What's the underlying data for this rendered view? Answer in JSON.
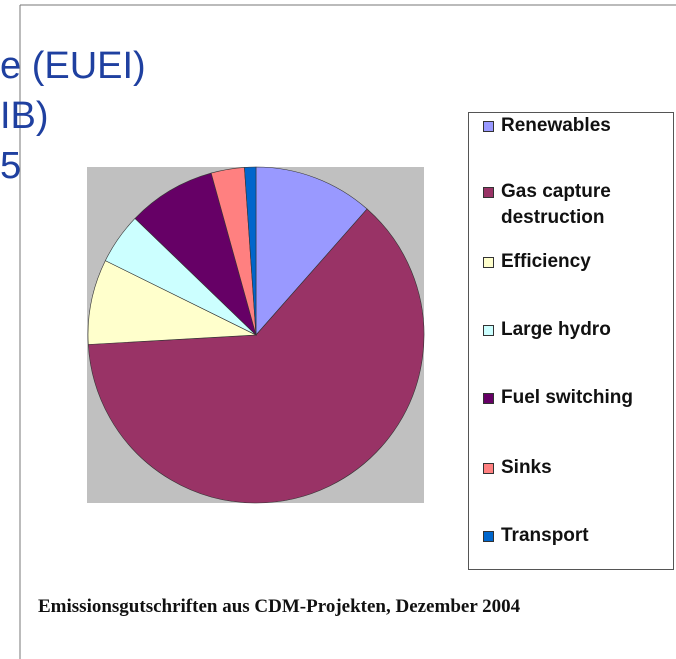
{
  "chart_data": {
    "type": "pie",
    "categories": [
      "Renewables",
      "Gas capture destruction",
      "Efficiency",
      "Large hydro",
      "Fuel switching",
      "Sinks",
      "Transport"
    ],
    "values": [
      11.5,
      62.6,
      8.2,
      4.9,
      8.5,
      3.2,
      1.1
    ],
    "colors": [
      "#9999ff",
      "#993366",
      "#ffffcc",
      "#ccffff",
      "#660066",
      "#ff8080",
      "#0066cc"
    ],
    "caption": "Emissionsgutschriften aus CDM-Projekten, Dezember 2004"
  },
  "slide_text": [
    "e (EUEI)",
    "IB)",
    "5"
  ]
}
